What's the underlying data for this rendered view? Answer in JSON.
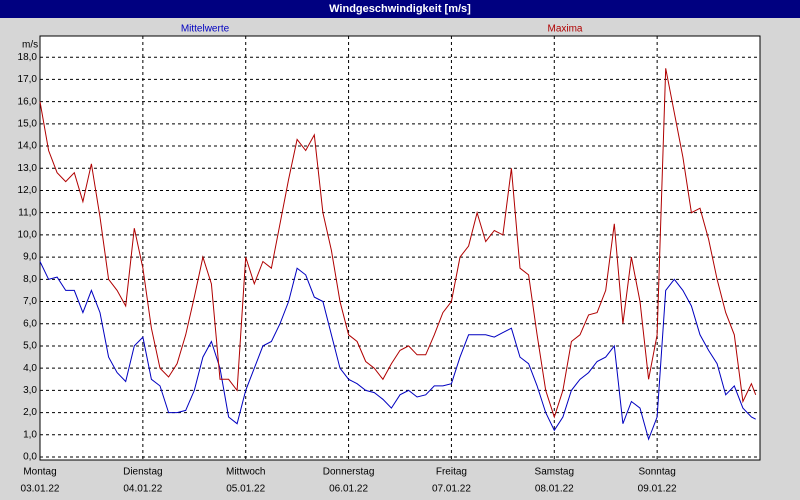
{
  "chart_data": {
    "type": "line",
    "title": "Windgeschwindigkeit [m/s]",
    "y_label": "m/s",
    "x": [
      0,
      2,
      4,
      6,
      8,
      10,
      12,
      14,
      16,
      18,
      20,
      22,
      24,
      26,
      28,
      30,
      32,
      34,
      36,
      38,
      40,
      42,
      44,
      46,
      48,
      50,
      52,
      54,
      56,
      58,
      60,
      62,
      64,
      66,
      68,
      70,
      72,
      74,
      76,
      78,
      80,
      82,
      84,
      86,
      88,
      90,
      92,
      94,
      96,
      98,
      100,
      102,
      104,
      106,
      108,
      110,
      112,
      114,
      116,
      118,
      120,
      122,
      124,
      126,
      128,
      130,
      132,
      134,
      136,
      138,
      140,
      142,
      144,
      146,
      148,
      150,
      152,
      154,
      156,
      158,
      160,
      162,
      164,
      166,
      167
    ],
    "series": [
      {
        "name": "Mittelwerte",
        "color": "#0000c0",
        "values": [
          8.8,
          8.0,
          8.1,
          7.5,
          7.5,
          6.5,
          7.5,
          6.5,
          4.5,
          3.8,
          3.4,
          5.0,
          5.4,
          3.5,
          3.2,
          2.0,
          2.0,
          2.1,
          3.0,
          4.5,
          5.2,
          4.0,
          1.8,
          1.5,
          3.0,
          4.0,
          5.0,
          5.2,
          6.0,
          7.0,
          8.5,
          8.2,
          7.2,
          7.0,
          5.5,
          4.0,
          3.5,
          3.3,
          3.0,
          2.9,
          2.6,
          2.2,
          2.8,
          3.0,
          2.7,
          2.8,
          3.2,
          3.2,
          3.3,
          4.5,
          5.5,
          5.5,
          5.5,
          5.4,
          5.6,
          5.8,
          4.5,
          4.2,
          3.2,
          2.0,
          1.2,
          1.8,
          3.0,
          3.5,
          3.8,
          4.3,
          4.5,
          5.0,
          1.5,
          2.5,
          2.2,
          0.8,
          1.8,
          7.5,
          8.0,
          7.5,
          6.8,
          5.5,
          4.8,
          4.2,
          2.8,
          3.2,
          2.2,
          1.8,
          1.7
        ]
      },
      {
        "name": "Maxima",
        "color": "#b00000",
        "values": [
          16.0,
          13.8,
          12.8,
          12.4,
          12.8,
          11.5,
          13.2,
          10.8,
          8.0,
          7.5,
          6.8,
          10.3,
          8.5,
          5.8,
          4.0,
          3.6,
          4.2,
          5.5,
          7.2,
          9.0,
          7.8,
          3.5,
          3.5,
          3.0,
          9.0,
          7.8,
          8.8,
          8.5,
          10.5,
          12.5,
          14.3,
          13.8,
          14.5,
          11.0,
          9.3,
          7.0,
          5.5,
          5.2,
          4.3,
          4.0,
          3.5,
          4.2,
          4.8,
          5.0,
          4.6,
          4.6,
          5.5,
          6.5,
          7.0,
          9.0,
          9.5,
          11.0,
          9.7,
          10.2,
          10.0,
          13.0,
          8.5,
          8.2,
          5.5,
          3.0,
          1.8,
          3.0,
          5.2,
          5.5,
          6.4,
          6.5,
          7.5,
          10.5,
          6.0,
          9.0,
          7.0,
          3.5,
          5.5,
          17.5,
          15.5,
          13.5,
          11.0,
          11.2,
          9.8,
          8.0,
          6.5,
          5.5,
          2.5,
          3.3,
          2.8
        ]
      }
    ],
    "xlim": [
      0,
      168
    ],
    "xticks": [
      {
        "value": 0,
        "label": "Montag"
      },
      {
        "value": 24,
        "label": "Dienstag"
      },
      {
        "value": 48,
        "label": "Mittwoch"
      },
      {
        "value": 72,
        "label": "Donnerstag"
      },
      {
        "value": 96,
        "label": "Freitag"
      },
      {
        "value": 120,
        "label": "Samstag"
      },
      {
        "value": 144,
        "label": "Sonntag"
      }
    ],
    "xtick_dates": [
      "03.01.22",
      "04.01.22",
      "05.01.22",
      "06.01.22",
      "07.01.22",
      "08.01.22",
      "09.01.22"
    ],
    "ylim": [
      0,
      19
    ],
    "yticks": [
      {
        "value": 0,
        "label": "0,0"
      },
      {
        "value": 1,
        "label": "1,0"
      },
      {
        "value": 2,
        "label": "2,0"
      },
      {
        "value": 3,
        "label": "3,0"
      },
      {
        "value": 4,
        "label": "4,0"
      },
      {
        "value": 5,
        "label": "5,0"
      },
      {
        "value": 6,
        "label": "6,0"
      },
      {
        "value": 7,
        "label": "7,0"
      },
      {
        "value": 8,
        "label": "8,0"
      },
      {
        "value": 9,
        "label": "9,0"
      },
      {
        "value": 10,
        "label": "10,0"
      },
      {
        "value": 11,
        "label": "11,0"
      },
      {
        "value": 12,
        "label": "12,0"
      },
      {
        "value": 13,
        "label": "13,0"
      },
      {
        "value": 14,
        "label": "14,0"
      },
      {
        "value": 15,
        "label": "15,0"
      },
      {
        "value": 16,
        "label": "16,0"
      },
      {
        "value": 17,
        "label": "17,0"
      },
      {
        "value": 18,
        "label": "18,0"
      }
    ],
    "grid": true
  }
}
